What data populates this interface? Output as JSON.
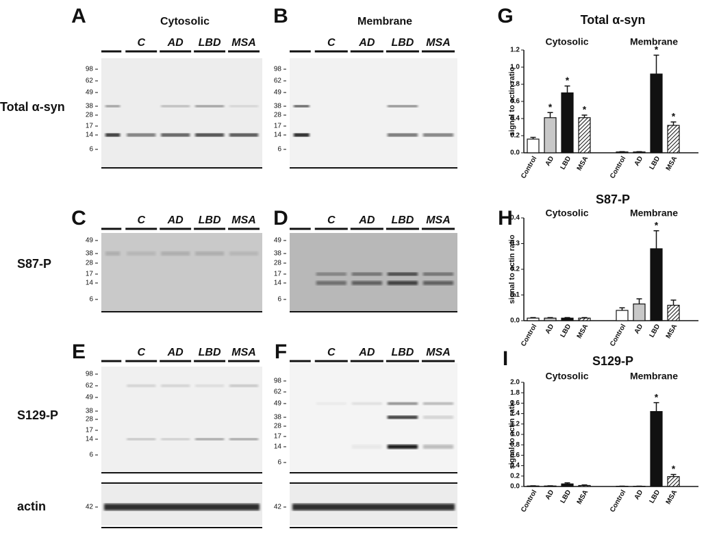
{
  "blots": {
    "columns": [
      "Cytosolic",
      "Membrane"
    ],
    "rows": [
      "Total α-syn",
      "S87-P",
      "S129-P",
      "actin"
    ],
    "panels": [
      {
        "letter": "A",
        "lanes": [
          "C",
          "AD",
          "LBD",
          "MSA"
        ],
        "markers": [
          98,
          62,
          49,
          38,
          28,
          17,
          14,
          6
        ]
      },
      {
        "letter": "B",
        "lanes": [
          "C",
          "AD",
          "LBD",
          "MSA"
        ],
        "markers": [
          98,
          62,
          49,
          38,
          28,
          17,
          14,
          6
        ]
      },
      {
        "letter": "C",
        "lanes": [
          "C",
          "AD",
          "LBD",
          "MSA"
        ],
        "markers": [
          49,
          38,
          28,
          17,
          14,
          6
        ]
      },
      {
        "letter": "D",
        "lanes": [
          "C",
          "AD",
          "LBD",
          "MSA"
        ],
        "markers": [
          49,
          38,
          28,
          17,
          14,
          6
        ]
      },
      {
        "letter": "E",
        "lanes": [
          "C",
          "AD",
          "LBD",
          "MSA"
        ],
        "markers": [
          98,
          62,
          49,
          38,
          28,
          17,
          14,
          6
        ]
      },
      {
        "letter": "F",
        "lanes": [
          "C",
          "AD",
          "LBD",
          "MSA"
        ],
        "markers": [
          98,
          62,
          49,
          38,
          28,
          17,
          14,
          6
        ]
      }
    ],
    "actin_markers": [
      42,
      42
    ]
  },
  "chart_data": [
    {
      "type": "bar",
      "letter": "G",
      "title": "Total α-syn",
      "groups": [
        "Cytosolic",
        "Membrane"
      ],
      "y_label": "signal to actin ratio",
      "categories": [
        "Control",
        "AD",
        "LBD",
        "MSA",
        "Control",
        "AD",
        "LBD",
        "MSA"
      ],
      "values": [
        0.16,
        0.41,
        0.7,
        0.41,
        0.01,
        0.01,
        0.92,
        0.32
      ],
      "errors": [
        0.02,
        0.06,
        0.08,
        0.03,
        0.003,
        0.003,
        0.22,
        0.04
      ],
      "significance": [
        null,
        "*",
        "*",
        "*",
        null,
        null,
        "*",
        "*"
      ],
      "colors": [
        "#ffffff",
        "#c8c8c8",
        "#111111",
        "#ffffff",
        "#ffffff",
        "#c8c8c8",
        "#111111",
        "#ffffff"
      ],
      "hatched": [
        false,
        false,
        false,
        true,
        false,
        false,
        false,
        true
      ],
      "ylim": [
        0,
        1.2
      ],
      "yticks": [
        {
          "value": 0,
          "label": "0.0"
        },
        0.2,
        0.4,
        0.6,
        0.8,
        {
          "value": 1,
          "label": "1.0"
        },
        1.2
      ]
    },
    {
      "type": "bar",
      "letter": "H",
      "title": "S87-P",
      "groups": [
        "Cytosolic",
        "Membrane"
      ],
      "y_label": "signal to actin ratio",
      "categories": [
        "Control",
        "AD",
        "LBD",
        "MSA",
        "Control",
        "AD",
        "LBD",
        "MSA"
      ],
      "values": [
        0.01,
        0.01,
        0.01,
        0.01,
        0.04,
        0.065,
        0.28,
        0.06
      ],
      "errors": [
        0.002,
        0.002,
        0.002,
        0.002,
        0.01,
        0.02,
        0.07,
        0.02
      ],
      "significance": [
        null,
        null,
        null,
        null,
        null,
        null,
        "*",
        null
      ],
      "colors": [
        "#ffffff",
        "#c8c8c8",
        "#111111",
        "#ffffff",
        "#ffffff",
        "#c8c8c8",
        "#111111",
        "#ffffff"
      ],
      "hatched": [
        false,
        false,
        false,
        true,
        false,
        false,
        false,
        true
      ],
      "ylim": [
        0,
        0.4
      ],
      "yticks": [
        {
          "value": 0,
          "label": "0.0"
        },
        0.1,
        0.2,
        0.3,
        0.4
      ]
    },
    {
      "type": "bar",
      "letter": "I",
      "title": "S129-P",
      "groups": [
        "Cytosolic",
        "Membrane"
      ],
      "y_label": "signal to actin ratio",
      "categories": [
        "Control",
        "AD",
        "LBD",
        "MSA",
        "Control",
        "AD",
        "LBD",
        "MSA"
      ],
      "values": [
        0.01,
        0.01,
        0.05,
        0.02,
        0.005,
        0.005,
        1.44,
        0.19
      ],
      "errors": [
        0.003,
        0.003,
        0.02,
        0.01,
        0.002,
        0.002,
        0.17,
        0.04
      ],
      "significance": [
        null,
        null,
        null,
        null,
        null,
        null,
        "*",
        "*"
      ],
      "colors": [
        "#ffffff",
        "#c8c8c8",
        "#111111",
        "#ffffff",
        "#ffffff",
        "#c8c8c8",
        "#111111",
        "#ffffff"
      ],
      "hatched": [
        false,
        false,
        false,
        true,
        false,
        false,
        false,
        true
      ],
      "ylim": [
        0,
        2
      ],
      "yticks": [
        {
          "value": 0,
          "label": "0.0"
        },
        0.2,
        0.4,
        0.6,
        0.8,
        {
          "value": 1,
          "label": "1.0"
        },
        1.2,
        1.4,
        1.6,
        1.8,
        {
          "value": 2,
          "label": "2.0"
        }
      ]
    }
  ]
}
